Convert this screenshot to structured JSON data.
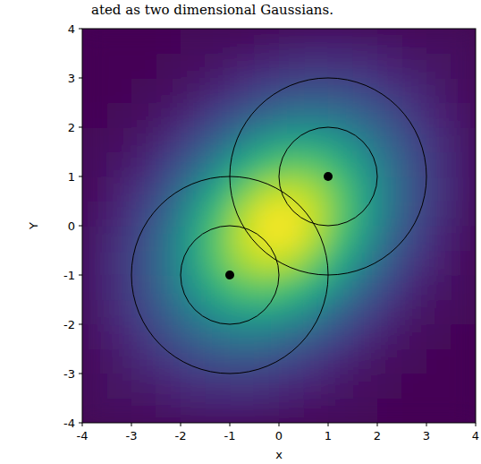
{
  "chart_data": {
    "type": "heatmap",
    "caption": "ated as two dimensional Gaussians.",
    "x_label": "x",
    "y_label": "Y",
    "xlim": [
      -4,
      4
    ],
    "ylim": [
      -4,
      4
    ],
    "xticks": [
      -4,
      -3,
      -2,
      -1,
      0,
      1,
      2,
      3,
      4
    ],
    "yticks": [
      -4,
      -3,
      -2,
      -1,
      0,
      1,
      2,
      3,
      4
    ],
    "xbins": [
      -4,
      -3.5,
      -3,
      -2.5,
      -2,
      -1.5,
      -1,
      -0.5,
      0,
      0.5,
      1,
      1.5,
      2,
      2.5,
      3,
      3.5,
      4
    ],
    "ybins": [
      -4,
      -3.5,
      -3,
      -2.5,
      -2,
      -1.5,
      -1,
      -0.5,
      0,
      0.5,
      1,
      1.5,
      2,
      2.5,
      3,
      3.5,
      4
    ],
    "cells": [
      [
        0.02,
        0.03,
        0.04,
        0.06,
        0.07,
        0.08,
        0.08,
        0.07,
        0.06,
        0.04,
        0.03,
        0.02,
        0.01,
        0,
        0,
        0
      ],
      [
        0.03,
        0.05,
        0.07,
        0.1,
        0.13,
        0.14,
        0.15,
        0.14,
        0.11,
        0.09,
        0.06,
        0.04,
        0.02,
        0.01,
        0.01,
        0
      ],
      [
        0.04,
        0.07,
        0.12,
        0.16,
        0.21,
        0.24,
        0.25,
        0.24,
        0.21,
        0.16,
        0.11,
        0.07,
        0.04,
        0.02,
        0.01,
        0
      ],
      [
        0.06,
        0.1,
        0.16,
        0.24,
        0.31,
        0.37,
        0.4,
        0.39,
        0.34,
        0.28,
        0.2,
        0.13,
        0.08,
        0.04,
        0.02,
        0.01
      ],
      [
        0.07,
        0.13,
        0.21,
        0.31,
        0.42,
        0.51,
        0.56,
        0.57,
        0.52,
        0.43,
        0.32,
        0.22,
        0.13,
        0.07,
        0.04,
        0.02
      ],
      [
        0.08,
        0.14,
        0.24,
        0.37,
        0.51,
        0.64,
        0.73,
        0.75,
        0.7,
        0.6,
        0.46,
        0.32,
        0.2,
        0.11,
        0.06,
        0.03
      ],
      [
        0.08,
        0.15,
        0.25,
        0.4,
        0.56,
        0.73,
        0.85,
        0.9,
        0.87,
        0.76,
        0.6,
        0.43,
        0.28,
        0.16,
        0.09,
        0.04
      ],
      [
        0.07,
        0.14,
        0.24,
        0.39,
        0.57,
        0.75,
        0.9,
        0.98,
        0.97,
        0.87,
        0.7,
        0.52,
        0.34,
        0.21,
        0.11,
        0.06
      ],
      [
        0.06,
        0.11,
        0.21,
        0.34,
        0.52,
        0.7,
        0.87,
        0.97,
        0.98,
        0.9,
        0.75,
        0.57,
        0.39,
        0.24,
        0.14,
        0.07
      ],
      [
        0.04,
        0.09,
        0.16,
        0.28,
        0.43,
        0.6,
        0.76,
        0.87,
        0.9,
        0.85,
        0.73,
        0.56,
        0.4,
        0.25,
        0.15,
        0.08
      ],
      [
        0.03,
        0.06,
        0.11,
        0.2,
        0.32,
        0.46,
        0.6,
        0.7,
        0.75,
        0.73,
        0.64,
        0.51,
        0.37,
        0.24,
        0.14,
        0.08
      ],
      [
        0.02,
        0.04,
        0.07,
        0.13,
        0.22,
        0.32,
        0.43,
        0.52,
        0.57,
        0.56,
        0.51,
        0.42,
        0.31,
        0.21,
        0.13,
        0.07
      ],
      [
        0.01,
        0.02,
        0.04,
        0.08,
        0.13,
        0.2,
        0.28,
        0.34,
        0.39,
        0.4,
        0.37,
        0.31,
        0.24,
        0.16,
        0.1,
        0.06
      ],
      [
        0,
        0.01,
        0.02,
        0.04,
        0.07,
        0.11,
        0.16,
        0.21,
        0.24,
        0.25,
        0.24,
        0.21,
        0.16,
        0.12,
        0.07,
        0.04
      ],
      [
        0,
        0.01,
        0.01,
        0.02,
        0.04,
        0.06,
        0.09,
        0.11,
        0.14,
        0.15,
        0.14,
        0.13,
        0.1,
        0.07,
        0.05,
        0.03
      ],
      [
        0,
        0,
        0,
        0.01,
        0.02,
        0.03,
        0.04,
        0.06,
        0.07,
        0.08,
        0.08,
        0.07,
        0.06,
        0.04,
        0.03,
        0.02
      ]
    ],
    "color_range": [
      0,
      1
    ],
    "centers": {
      "x": [
        -1,
        1
      ],
      "y": [
        -1,
        1
      ]
    },
    "radii": [
      1,
      2
    ]
  }
}
